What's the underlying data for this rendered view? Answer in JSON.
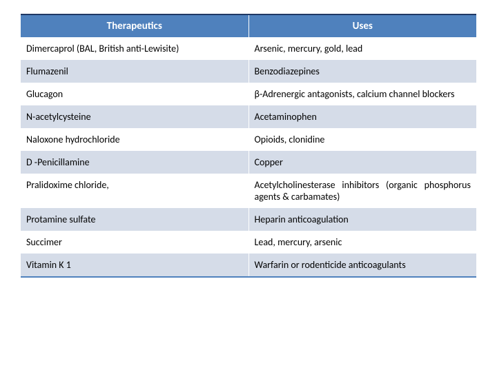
{
  "table": {
    "headers": [
      "Therapeutics",
      "Uses"
    ],
    "header_bg": "#4f81bd",
    "header_color": "#ffffff",
    "border_top_color": "#1f3864",
    "row_odd_bg": "#ffffff",
    "row_even_bg": "#d5dce8",
    "font_family": "Calibri, Arial, sans-serif",
    "header_fontsize": 15,
    "cell_fontsize": 14,
    "rows": [
      {
        "therapeutic": "Dimercaprol (BAL, British anti-Lewisite)",
        "use": "Arsenic, mercury, gold, lead"
      },
      {
        "therapeutic": "Flumazenil",
        "use": "Benzodiazepines"
      },
      {
        "therapeutic": "Glucagon",
        "use": "β-Adrenergic antagonists, calcium channel blockers"
      },
      {
        "therapeutic": "N-acetylcysteine",
        "use": "Acetaminophen"
      },
      {
        "therapeutic": "Naloxone hydrochloride",
        "use": "Opioids, clonidine"
      },
      {
        "therapeutic": "D -Penicillamine",
        "use": "Copper"
      },
      {
        "therapeutic": "Pralidoxime chloride,",
        "use": "Acetylcholinesterase inhibitors (organic phosphorus agents & carbamates)"
      },
      {
        "therapeutic": "Protamine sulfate",
        "use": "Heparin anticoagulation"
      },
      {
        "therapeutic": "Succimer",
        "use": "Lead, mercury, arsenic"
      },
      {
        "therapeutic": "Vitamin K 1",
        "use": "Warfarin or rodenticide anticoagulants"
      }
    ]
  }
}
